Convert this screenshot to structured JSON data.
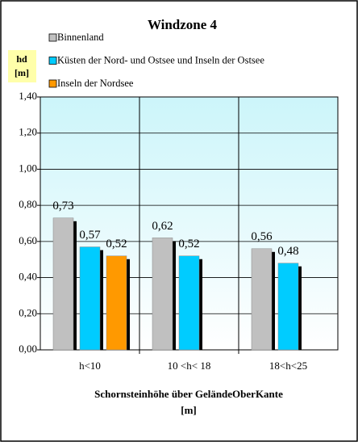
{
  "chart_data": {
    "type": "bar",
    "title": "Windzone 4",
    "ylabel": [
      "hd",
      "[m]"
    ],
    "xlabel": [
      "Schornsteinhöhe über GeländeOberKante",
      "[m]"
    ],
    "categories": [
      "h<10",
      "10 <h< 18",
      "18<h<25"
    ],
    "series": [
      {
        "name": "Binnenland",
        "color": "#c0c0c0",
        "values": [
          0.73,
          0.62,
          0.56
        ],
        "value_labels": [
          "0,73",
          "0,62",
          "0,56"
        ]
      },
      {
        "name": "Küsten der Nord- und Ostsee und Inseln der Ostsee",
        "color": "#00ccff",
        "values": [
          0.57,
          0.52,
          0.48
        ],
        "value_labels": [
          "0,57",
          "0,52",
          "0,48"
        ]
      },
      {
        "name": "Inseln der Nordsee",
        "color": "#ff9900",
        "values": [
          0.52,
          null,
          null
        ],
        "value_labels": [
          "0,52",
          null,
          null
        ]
      }
    ],
    "ylim": [
      0,
      1.4
    ],
    "yticks": [
      {
        "value": 0,
        "label": "0,00"
      },
      {
        "value": 0.2,
        "label": "0,20"
      },
      {
        "value": 0.4,
        "label": "0,40"
      },
      {
        "value": 0.6,
        "label": "0,60"
      },
      {
        "value": 0.8,
        "label": "0,80"
      },
      {
        "value": 1.0,
        "label": "1,00"
      },
      {
        "value": 1.2,
        "label": "1,20"
      },
      {
        "value": 1.4,
        "label": "1,40"
      }
    ],
    "grid": true
  }
}
